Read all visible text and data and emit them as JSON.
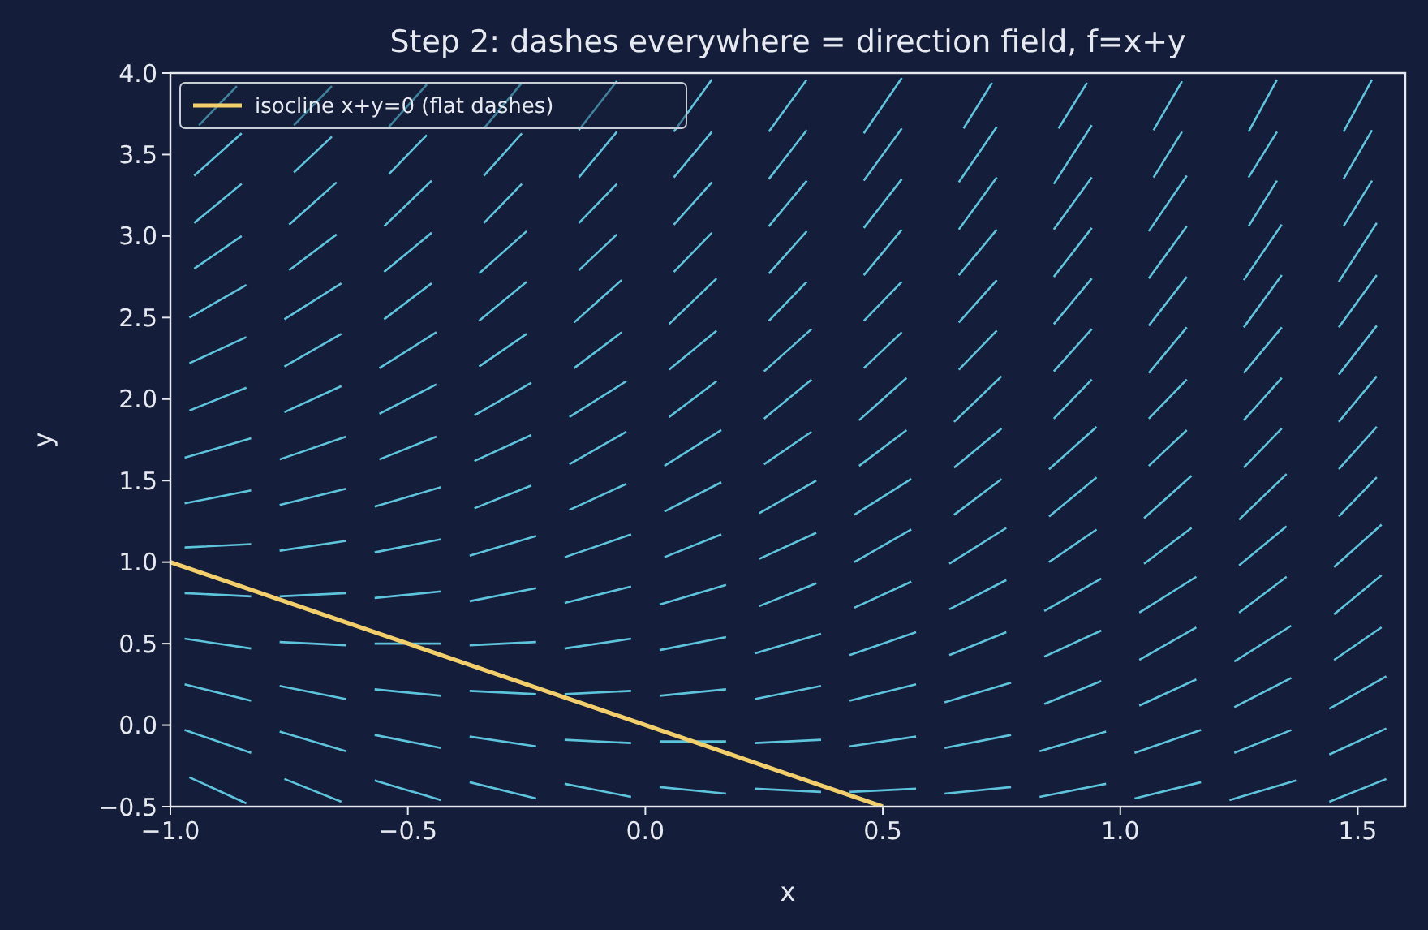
{
  "chart_data": {
    "type": "line",
    "title": "Step 2: dashes everywhere = direction field, f=x+y",
    "xlabel": "x",
    "ylabel": "y",
    "xlim": [
      -1,
      1.6
    ],
    "ylim": [
      -0.5,
      4
    ],
    "xticks": [
      {
        "value": -1,
        "label": "−1.0"
      },
      {
        "value": -0.5,
        "label": "−0.5"
      },
      {
        "value": 0,
        "label": "0.0"
      },
      {
        "value": 0.5,
        "label": "0.5"
      },
      {
        "value": 1,
        "label": "1.0"
      },
      {
        "value": 1.5,
        "label": "1.5"
      }
    ],
    "yticks": [
      {
        "value": -0.5,
        "label": "−0.5"
      },
      {
        "value": 0,
        "label": "0.0"
      },
      {
        "value": 0.5,
        "label": "0.5"
      },
      {
        "value": 1,
        "label": "1.0"
      },
      {
        "value": 1.5,
        "label": "1.5"
      },
      {
        "value": 2,
        "label": "2.0"
      },
      {
        "value": 2.5,
        "label": "2.5"
      },
      {
        "value": 3,
        "label": "3.0"
      },
      {
        "value": 3.5,
        "label": "3.5"
      },
      {
        "value": 4,
        "label": "4.0"
      }
    ],
    "legend": "top left",
    "grid": false,
    "series": [
      {
        "color": "#5ec4dc",
        "x": [
          -0.96,
          -0.84,
          null,
          -0.76,
          -0.64,
          null,
          -0.57,
          -0.43,
          null,
          -0.37,
          -0.23,
          null,
          -0.17,
          -0.03,
          null,
          0.03,
          0.17,
          null,
          0.23,
          0.37,
          null,
          0.43,
          0.57,
          null,
          0.63,
          0.77,
          null,
          0.83,
          0.97,
          null,
          1.03,
          1.17,
          null,
          1.23,
          1.37,
          null,
          1.44,
          1.56
        ],
        "values": [
          -0.32,
          -0.48,
          null,
          -0.33,
          -0.47,
          null,
          -0.34,
          -0.46,
          null,
          -0.35,
          -0.45,
          null,
          -0.36,
          -0.44,
          null,
          -0.38,
          -0.42,
          null,
          -0.39,
          -0.41,
          null,
          -0.41,
          -0.39,
          null,
          -0.42,
          -0.38,
          null,
          -0.44,
          -0.36,
          null,
          -0.45,
          -0.35,
          null,
          -0.46,
          -0.34,
          null,
          -0.47,
          -0.33
        ]
      },
      {
        "color": "#5ec4dc",
        "x": [
          -0.97,
          -0.83,
          null,
          -0.77,
          -0.63,
          null,
          -0.57,
          -0.43,
          null,
          -0.37,
          -0.23,
          null,
          -0.17,
          -0.03,
          null,
          0.03,
          0.17,
          null,
          0.23,
          0.37,
          null,
          0.43,
          0.57,
          null,
          0.63,
          0.77,
          null,
          0.83,
          0.97,
          null,
          1.03,
          1.17,
          null,
          1.24,
          1.36,
          null,
          1.44,
          1.56
        ],
        "values": [
          -0.03,
          -0.17,
          null,
          -0.04,
          -0.16,
          null,
          -0.06,
          -0.14,
          null,
          -0.07,
          -0.13,
          null,
          -0.09,
          -0.11,
          null,
          -0.1,
          -0.1,
          null,
          -0.11,
          -0.09,
          null,
          -0.13,
          -0.07,
          null,
          -0.14,
          -0.06,
          null,
          -0.16,
          -0.04,
          null,
          -0.17,
          -0.03,
          null,
          -0.17,
          -0.03,
          null,
          -0.18,
          -0.02
        ]
      },
      {
        "color": "#5ec4dc",
        "x": [
          -0.97,
          -0.83,
          null,
          -0.77,
          -0.63,
          null,
          -0.57,
          -0.43,
          null,
          -0.37,
          -0.23,
          null,
          -0.17,
          -0.03,
          null,
          0.03,
          0.17,
          null,
          0.23,
          0.37,
          null,
          0.43,
          0.57,
          null,
          0.63,
          0.77,
          null,
          0.84,
          0.96,
          null,
          1.04,
          1.16,
          null,
          1.24,
          1.36,
          null,
          1.44,
          1.56
        ],
        "values": [
          0.25,
          0.15,
          null,
          0.24,
          0.16,
          null,
          0.22,
          0.18,
          null,
          0.21,
          0.19,
          null,
          0.19,
          0.21,
          null,
          0.18,
          0.22,
          null,
          0.16,
          0.24,
          null,
          0.15,
          0.25,
          null,
          0.14,
          0.26,
          null,
          0.13,
          0.27,
          null,
          0.12,
          0.28,
          null,
          0.11,
          0.29,
          null,
          0.1,
          0.3
        ]
      },
      {
        "color": "#5ec4dc",
        "x": [
          -0.97,
          -0.83,
          null,
          -0.77,
          -0.63,
          null,
          -0.57,
          -0.43,
          null,
          -0.37,
          -0.23,
          null,
          -0.17,
          -0.03,
          null,
          0.03,
          0.17,
          null,
          0.23,
          0.37,
          null,
          0.43,
          0.57,
          null,
          0.64,
          0.76,
          null,
          0.84,
          0.96,
          null,
          1.04,
          1.16,
          null,
          1.24,
          1.36,
          null,
          1.45,
          1.55
        ],
        "values": [
          0.53,
          0.47,
          null,
          0.51,
          0.49,
          null,
          0.5,
          0.5,
          null,
          0.49,
          0.51,
          null,
          0.47,
          0.53,
          null,
          0.46,
          0.54,
          null,
          0.44,
          0.56,
          null,
          0.43,
          0.57,
          null,
          0.43,
          0.57,
          null,
          0.42,
          0.58,
          null,
          0.4,
          0.6,
          null,
          0.39,
          0.61,
          null,
          0.4,
          0.6
        ]
      },
      {
        "color": "#5ec4dc",
        "x": [
          -0.97,
          -0.83,
          null,
          -0.77,
          -0.63,
          null,
          -0.57,
          -0.43,
          null,
          -0.37,
          -0.23,
          null,
          -0.17,
          -0.03,
          null,
          0.03,
          0.17,
          null,
          0.24,
          0.36,
          null,
          0.44,
          0.56,
          null,
          0.64,
          0.76,
          null,
          0.84,
          0.96,
          null,
          1.04,
          1.16,
          null,
          1.25,
          1.35,
          null,
          1.45,
          1.55
        ],
        "values": [
          0.81,
          0.79,
          null,
          0.79,
          0.81,
          null,
          0.78,
          0.82,
          null,
          0.76,
          0.84,
          null,
          0.75,
          0.85,
          null,
          0.74,
          0.86,
          null,
          0.73,
          0.87,
          null,
          0.72,
          0.88,
          null,
          0.71,
          0.89,
          null,
          0.7,
          0.9,
          null,
          0.69,
          0.91,
          null,
          0.69,
          0.91,
          null,
          0.68,
          0.92
        ]
      },
      {
        "color": "#5ec4dc",
        "x": [
          -0.97,
          -0.83,
          null,
          -0.77,
          -0.63,
          null,
          -0.57,
          -0.43,
          null,
          -0.37,
          -0.23,
          null,
          -0.17,
          -0.03,
          null,
          0.04,
          0.16,
          null,
          0.24,
          0.36,
          null,
          0.44,
          0.56,
          null,
          0.64,
          0.76,
          null,
          0.85,
          0.95,
          null,
          1.05,
          1.15,
          null,
          1.25,
          1.35,
          null,
          1.45,
          1.55
        ],
        "values": [
          1.09,
          1.11,
          null,
          1.07,
          1.13,
          null,
          1.06,
          1.14,
          null,
          1.04,
          1.16,
          null,
          1.03,
          1.17,
          null,
          1.03,
          1.17,
          null,
          1.02,
          1.18,
          null,
          1.0,
          1.2,
          null,
          0.99,
          1.21,
          null,
          1.0,
          1.2,
          null,
          0.99,
          1.21,
          null,
          0.98,
          1.22,
          null,
          0.97,
          1.23
        ]
      },
      {
        "color": "#5ec4dc",
        "x": [
          -0.97,
          -0.83,
          null,
          -0.77,
          -0.63,
          null,
          -0.57,
          -0.43,
          null,
          -0.36,
          -0.24,
          null,
          -0.16,
          -0.04,
          null,
          0.04,
          0.16,
          null,
          0.24,
          0.36,
          null,
          0.44,
          0.56,
          null,
          0.65,
          0.75,
          null,
          0.85,
          0.95,
          null,
          1.05,
          1.15,
          null,
          1.25,
          1.35,
          null,
          1.46,
          1.54
        ],
        "values": [
          1.36,
          1.44,
          null,
          1.35,
          1.45,
          null,
          1.34,
          1.46,
          null,
          1.33,
          1.47,
          null,
          1.32,
          1.48,
          null,
          1.31,
          1.49,
          null,
          1.3,
          1.5,
          null,
          1.29,
          1.51,
          null,
          1.29,
          1.51,
          null,
          1.28,
          1.52,
          null,
          1.27,
          1.53,
          null,
          1.26,
          1.54,
          null,
          1.28,
          1.52
        ]
      },
      {
        "color": "#5ec4dc",
        "x": [
          -0.97,
          -0.83,
          null,
          -0.77,
          -0.63,
          null,
          -0.56,
          -0.44,
          null,
          -0.36,
          -0.24,
          null,
          -0.16,
          -0.04,
          null,
          0.04,
          0.16,
          null,
          0.25,
          0.35,
          null,
          0.45,
          0.55,
          null,
          0.65,
          0.75,
          null,
          0.85,
          0.95,
          null,
          1.06,
          1.14,
          null,
          1.26,
          1.34,
          null,
          1.46,
          1.54
        ],
        "values": [
          1.64,
          1.76,
          null,
          1.63,
          1.77,
          null,
          1.63,
          1.77,
          null,
          1.62,
          1.78,
          null,
          1.6,
          1.8,
          null,
          1.59,
          1.81,
          null,
          1.6,
          1.8,
          null,
          1.59,
          1.81,
          null,
          1.58,
          1.82,
          null,
          1.57,
          1.83,
          null,
          1.59,
          1.81,
          null,
          1.58,
          1.82,
          null,
          1.57,
          1.83
        ]
      },
      {
        "color": "#5ec4dc",
        "x": [
          -0.96,
          -0.84,
          null,
          -0.76,
          -0.64,
          null,
          -0.56,
          -0.44,
          null,
          -0.36,
          -0.24,
          null,
          -0.16,
          -0.04,
          null,
          0.05,
          0.15,
          null,
          0.25,
          0.35,
          null,
          0.45,
          0.55,
          null,
          0.65,
          0.75,
          null,
          0.86,
          0.94,
          null,
          1.06,
          1.14,
          null,
          1.26,
          1.34,
          null,
          1.46,
          1.54
        ],
        "values": [
          1.93,
          2.07,
          null,
          1.92,
          2.08,
          null,
          1.91,
          2.09,
          null,
          1.9,
          2.1,
          null,
          1.89,
          2.11,
          null,
          1.89,
          2.11,
          null,
          1.88,
          2.12,
          null,
          1.87,
          2.13,
          null,
          1.86,
          2.14,
          null,
          1.88,
          2.12,
          null,
          1.88,
          2.12,
          null,
          1.87,
          2.13,
          null,
          1.86,
          2.14
        ]
      },
      {
        "color": "#5ec4dc",
        "x": [
          -0.96,
          -0.84,
          null,
          -0.76,
          -0.64,
          null,
          -0.56,
          -0.44,
          null,
          -0.35,
          -0.25,
          null,
          -0.15,
          -0.05,
          null,
          0.05,
          0.15,
          null,
          0.25,
          0.35,
          null,
          0.46,
          0.54,
          null,
          0.66,
          0.74,
          null,
          0.86,
          0.94,
          null,
          1.06,
          1.14,
          null,
          1.26,
          1.34,
          null,
          1.46,
          1.54
        ],
        "values": [
          2.22,
          2.38,
          null,
          2.2,
          2.4,
          null,
          2.19,
          2.41,
          null,
          2.2,
          2.4,
          null,
          2.19,
          2.41,
          null,
          2.18,
          2.42,
          null,
          2.17,
          2.43,
          null,
          2.19,
          2.41,
          null,
          2.18,
          2.42,
          null,
          2.17,
          2.43,
          null,
          2.16,
          2.44,
          null,
          2.16,
          2.44,
          null,
          2.15,
          2.45
        ]
      },
      {
        "color": "#5ec4dc",
        "x": [
          -0.96,
          -0.84,
          null,
          -0.76,
          -0.64,
          null,
          -0.55,
          -0.45,
          null,
          -0.35,
          -0.25,
          null,
          -0.15,
          -0.05,
          null,
          0.05,
          0.15,
          null,
          0.26,
          0.34,
          null,
          0.46,
          0.54,
          null,
          0.66,
          0.74,
          null,
          0.86,
          0.94,
          null,
          1.06,
          1.14,
          null,
          1.26,
          1.34,
          null,
          1.46,
          1.54
        ],
        "values": [
          2.5,
          2.7,
          null,
          2.49,
          2.71,
          null,
          2.49,
          2.71,
          null,
          2.48,
          2.72,
          null,
          2.47,
          2.73,
          null,
          2.46,
          2.74,
          null,
          2.48,
          2.72,
          null,
          2.48,
          2.72,
          null,
          2.47,
          2.73,
          null,
          2.46,
          2.74,
          null,
          2.45,
          2.75,
          null,
          2.44,
          2.76,
          null,
          2.44,
          2.76
        ]
      },
      {
        "color": "#5ec4dc",
        "x": [
          -0.95,
          -0.85,
          null,
          -0.75,
          -0.65,
          null,
          -0.55,
          -0.45,
          null,
          -0.35,
          -0.25,
          null,
          -0.14,
          -0.06,
          null,
          0.06,
          0.14,
          null,
          0.26,
          0.34,
          null,
          0.46,
          0.54,
          null,
          0.66,
          0.74,
          null,
          0.86,
          0.94,
          null,
          1.06,
          1.14,
          null,
          1.26,
          1.34,
          null,
          1.46,
          1.54
        ],
        "values": [
          2.8,
          3.0,
          null,
          2.79,
          3.01,
          null,
          2.78,
          3.02,
          null,
          2.77,
          3.03,
          null,
          2.79,
          3.01,
          null,
          2.78,
          3.02,
          null,
          2.77,
          3.03,
          null,
          2.76,
          3.04,
          null,
          2.76,
          3.04,
          null,
          2.75,
          3.05,
          null,
          2.74,
          3.06,
          null,
          2.73,
          3.07,
          null,
          2.72,
          3.08
        ]
      },
      {
        "color": "#5ec4dc",
        "x": [
          -0.95,
          -0.85,
          null,
          -0.75,
          -0.65,
          null,
          -0.55,
          -0.45,
          null,
          -0.34,
          -0.26,
          null,
          -0.14,
          -0.06,
          null,
          0.06,
          0.14,
          null,
          0.26,
          0.34,
          null,
          0.46,
          0.54,
          null,
          0.66,
          0.74,
          null,
          0.86,
          0.94,
          null,
          1.06,
          1.14,
          null,
          1.27,
          1.33,
          null,
          1.47,
          1.53
        ],
        "values": [
          3.08,
          3.32,
          null,
          3.07,
          3.33,
          null,
          3.06,
          3.34,
          null,
          3.08,
          3.32,
          null,
          3.08,
          3.32,
          null,
          3.07,
          3.33,
          null,
          3.06,
          3.34,
          null,
          3.05,
          3.35,
          null,
          3.04,
          3.36,
          null,
          3.04,
          3.36,
          null,
          3.03,
          3.37,
          null,
          3.06,
          3.34,
          null,
          3.06,
          3.34
        ]
      },
      {
        "color": "#5ec4dc",
        "x": [
          -0.95,
          -0.85,
          null,
          -0.74,
          -0.66,
          null,
          -0.54,
          -0.46,
          null,
          -0.34,
          -0.26,
          null,
          -0.14,
          -0.06,
          null,
          0.06,
          0.14,
          null,
          0.26,
          0.34,
          null,
          0.46,
          0.54,
          null,
          0.66,
          0.74,
          null,
          0.86,
          0.94,
          null,
          1.07,
          1.13,
          null,
          1.27,
          1.33,
          null,
          1.47,
          1.53
        ],
        "values": [
          3.37,
          3.63,
          null,
          3.39,
          3.61,
          null,
          3.38,
          3.62,
          null,
          3.37,
          3.63,
          null,
          3.36,
          3.64,
          null,
          3.36,
          3.64,
          null,
          3.35,
          3.65,
          null,
          3.34,
          3.66,
          null,
          3.33,
          3.67,
          null,
          3.32,
          3.68,
          null,
          3.36,
          3.64,
          null,
          3.36,
          3.64,
          null,
          3.35,
          3.65
        ]
      },
      {
        "color": "#5ec4dc",
        "x": [
          -0.94,
          -0.86,
          null,
          -0.74,
          -0.66,
          null,
          -0.54,
          -0.46,
          null,
          -0.34,
          -0.26,
          null,
          -0.14,
          -0.06,
          null,
          0.06,
          0.14,
          null,
          0.26,
          0.34,
          null,
          0.46,
          0.54,
          null,
          0.67,
          0.73,
          null,
          0.87,
          0.93,
          null,
          1.07,
          1.13,
          null,
          1.27,
          1.33,
          null,
          1.47,
          1.53
        ],
        "values": [
          3.68,
          3.92,
          null,
          3.68,
          3.92,
          null,
          3.67,
          3.93,
          null,
          3.66,
          3.94,
          null,
          3.65,
          3.95,
          null,
          3.64,
          3.96,
          null,
          3.64,
          3.96,
          null,
          3.63,
          3.97,
          null,
          3.66,
          3.94,
          null,
          3.66,
          3.94,
          null,
          3.65,
          3.95,
          null,
          3.64,
          3.96,
          null,
          3.64,
          3.96
        ]
      },
      {
        "name": "isocline x+y=0 (flat dashes)",
        "color": "#f2cf6b",
        "x": [
          -1,
          0.5
        ],
        "values": [
          1,
          -0.5
        ]
      }
    ]
  }
}
